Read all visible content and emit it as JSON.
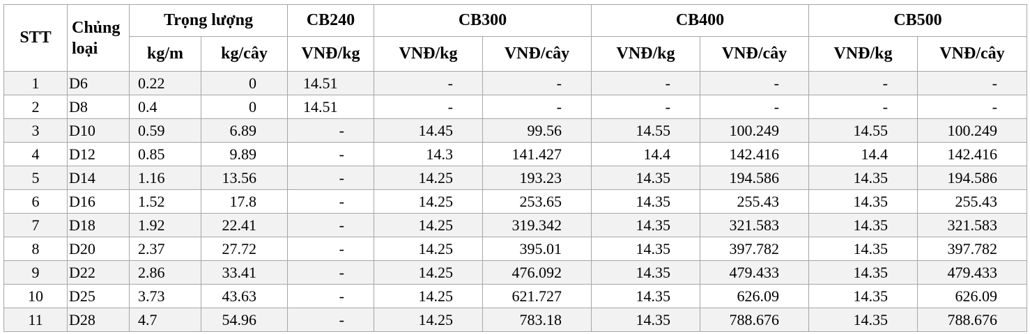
{
  "header": {
    "stt": "STT",
    "loai": "Chủng loại",
    "trong_luong": "Trọng lượng",
    "cb240": "CB240",
    "cb300": "CB300",
    "cb400": "CB400",
    "cb500": "CB500",
    "kg_m": "kg/m",
    "kg_cay": "kg/cây",
    "vnd_kg": "VNĐ/kg",
    "vnd_cay": "VNĐ/cây"
  },
  "rows": [
    {
      "stt": "1",
      "loai": "D6",
      "kgm": "0.22",
      "kgcay": "0",
      "cb240": "14.51",
      "cb300_kg": "-",
      "cb300_cay": "-",
      "cb400_kg": "-",
      "cb400_cay": "-",
      "cb500_kg": "-",
      "cb500_cay": "-"
    },
    {
      "stt": "2",
      "loai": "D8",
      "kgm": "0.4",
      "kgcay": "0",
      "cb240": "14.51",
      "cb300_kg": "-",
      "cb300_cay": "-",
      "cb400_kg": "-",
      "cb400_cay": "-",
      "cb500_kg": "-",
      "cb500_cay": "-"
    },
    {
      "stt": "3",
      "loai": "D10",
      "kgm": "0.59",
      "kgcay": "6.89",
      "cb240": "-",
      "cb300_kg": "14.45",
      "cb300_cay": "99.56",
      "cb400_kg": "14.55",
      "cb400_cay": "100.249",
      "cb500_kg": "14.55",
      "cb500_cay": "100.249"
    },
    {
      "stt": "4",
      "loai": "D12",
      "kgm": "0.85",
      "kgcay": "9.89",
      "cb240": "-",
      "cb300_kg": "14.3",
      "cb300_cay": "141.427",
      "cb400_kg": "14.4",
      "cb400_cay": "142.416",
      "cb500_kg": "14.4",
      "cb500_cay": "142.416"
    },
    {
      "stt": "5",
      "loai": "D14",
      "kgm": "1.16",
      "kgcay": "13.56",
      "cb240": "-",
      "cb300_kg": "14.25",
      "cb300_cay": "193.23",
      "cb400_kg": "14.35",
      "cb400_cay": "194.586",
      "cb500_kg": "14.35",
      "cb500_cay": "194.586"
    },
    {
      "stt": "6",
      "loai": "D16",
      "kgm": "1.52",
      "kgcay": "17.8",
      "cb240": "-",
      "cb300_kg": "14.25",
      "cb300_cay": "253.65",
      "cb400_kg": "14.35",
      "cb400_cay": "255.43",
      "cb500_kg": "14.35",
      "cb500_cay": "255.43"
    },
    {
      "stt": "7",
      "loai": "D18",
      "kgm": "1.92",
      "kgcay": "22.41",
      "cb240": "-",
      "cb300_kg": "14.25",
      "cb300_cay": "319.342",
      "cb400_kg": "14.35",
      "cb400_cay": "321.583",
      "cb500_kg": "14.35",
      "cb500_cay": "321.583"
    },
    {
      "stt": "8",
      "loai": "D20",
      "kgm": "2.37",
      "kgcay": "27.72",
      "cb240": "-",
      "cb300_kg": "14.25",
      "cb300_cay": "395.01",
      "cb400_kg": "14.35",
      "cb400_cay": "397.782",
      "cb500_kg": "14.35",
      "cb500_cay": "397.782"
    },
    {
      "stt": "9",
      "loai": "D22",
      "kgm": "2.86",
      "kgcay": "33.41",
      "cb240": "-",
      "cb300_kg": "14.25",
      "cb300_cay": "476.092",
      "cb400_kg": "14.35",
      "cb400_cay": "479.433",
      "cb500_kg": "14.35",
      "cb500_cay": "479.433"
    },
    {
      "stt": "10",
      "loai": "D25",
      "kgm": "3.73",
      "kgcay": "43.63",
      "cb240": "-",
      "cb300_kg": "14.25",
      "cb300_cay": "621.727",
      "cb400_kg": "14.35",
      "cb400_cay": "626.09",
      "cb500_kg": "14.35",
      "cb500_cay": "626.09"
    },
    {
      "stt": "11",
      "loai": "D28",
      "kgm": "4.7",
      "kgcay": "54.96",
      "cb240": "-",
      "cb300_kg": "14.25",
      "cb300_cay": "783.18",
      "cb400_kg": "14.35",
      "cb400_cay": "788.676",
      "cb500_kg": "14.35",
      "cb500_cay": "788.676"
    }
  ]
}
